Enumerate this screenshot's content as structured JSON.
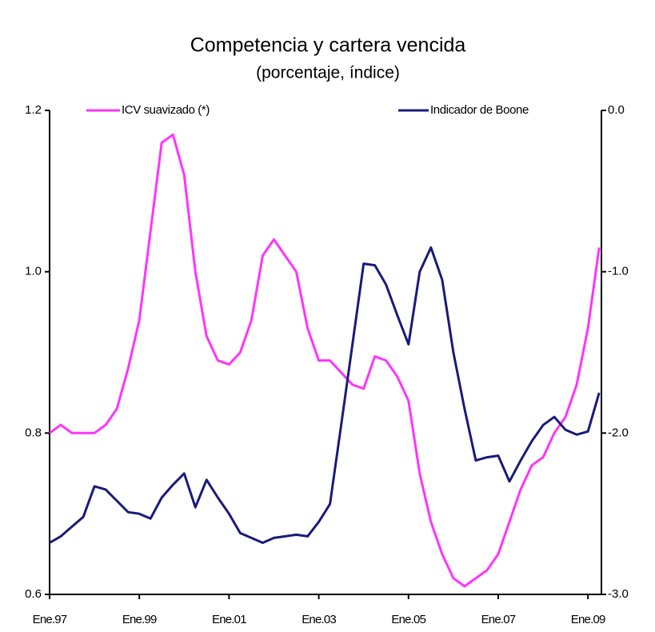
{
  "chart_data": {
    "type": "line",
    "title": "Competencia y cartera vencida",
    "subtitle": "(porcentaje, índice)",
    "x": [
      1997,
      1997.25,
      1997.5,
      1997.75,
      1998,
      1998.25,
      1998.5,
      1998.75,
      1999,
      1999.25,
      1999.5,
      1999.75,
      2000,
      2000.25,
      2000.5,
      2000.75,
      2001,
      2001.25,
      2001.5,
      2001.75,
      2002,
      2002.25,
      2002.5,
      2002.75,
      2003,
      2003.25,
      2003.5,
      2003.75,
      2004,
      2004.25,
      2004.5,
      2004.75,
      2005,
      2005.25,
      2005.5,
      2005.75,
      2006,
      2006.25,
      2006.5,
      2006.75,
      2007,
      2007.25,
      2007.5,
      2007.75,
      2008,
      2008.25,
      2008.5,
      2008.75,
      2009,
      2009.25
    ],
    "series": [
      {
        "name": "ICV suavizado (*)",
        "color": "#ff33ff",
        "axis": "y",
        "values": [
          0.8,
          0.81,
          0.8,
          0.8,
          0.8,
          0.81,
          0.83,
          0.88,
          0.94,
          1.05,
          1.16,
          1.17,
          1.12,
          1.0,
          0.92,
          0.89,
          0.885,
          0.9,
          0.94,
          1.02,
          1.04,
          1.02,
          1.0,
          0.93,
          0.89,
          0.89,
          0.875,
          0.86,
          0.855,
          0.895,
          0.89,
          0.87,
          0.84,
          0.75,
          0.69,
          0.65,
          0.62,
          0.61,
          0.62,
          0.63,
          0.65,
          0.69,
          0.73,
          0.76,
          0.77,
          0.8,
          0.82,
          0.86,
          0.93,
          1.03
        ]
      },
      {
        "name": "Indicador de Boone",
        "color": "#1a1a7a",
        "axis": "y2",
        "values": [
          -2.68,
          -2.64,
          -2.58,
          -2.52,
          -2.33,
          -2.35,
          -2.42,
          -2.49,
          -2.5,
          -2.53,
          -2.4,
          -2.32,
          -2.25,
          -2.46,
          -2.29,
          -2.4,
          -2.5,
          -2.62,
          -2.65,
          -2.68,
          -2.65,
          -2.64,
          -2.63,
          -2.64,
          -2.55,
          -2.44,
          -1.95,
          -1.45,
          -0.95,
          -0.96,
          -1.08,
          -1.27,
          -1.45,
          -1.0,
          -0.85,
          -1.05,
          -1.5,
          -1.85,
          -2.17,
          -2.15,
          -2.14,
          -2.3,
          -2.17,
          -2.05,
          -1.95,
          -1.9,
          -1.98,
          -2.01,
          -1.99,
          -1.75
        ]
      }
    ],
    "xlim": [
      1997,
      2009.3
    ],
    "xticks": [
      {
        "value": 1997,
        "label": "Ene.97"
      },
      {
        "value": 1999,
        "label": "Ene.99"
      },
      {
        "value": 2001,
        "label": "Ene.01"
      },
      {
        "value": 2003,
        "label": "Ene.03"
      },
      {
        "value": 2005,
        "label": "Ene.05"
      },
      {
        "value": 2007,
        "label": "Ene.07"
      },
      {
        "value": 2009,
        "label": "Ene.09"
      }
    ],
    "ylim": [
      0.6,
      1.2
    ],
    "yticks": [
      0.6,
      0.8,
      {
        "value": 1,
        "label": "1.0"
      },
      1.2
    ],
    "y2lim": [
      -3,
      0
    ],
    "y2ticks": [
      {
        "value": -3,
        "label": "-3.0"
      },
      {
        "value": -2,
        "label": "-2.0"
      },
      {
        "value": -1,
        "label": "-1.0"
      },
      {
        "value": 0,
        "label": "0.0"
      }
    ],
    "legend": "top"
  }
}
